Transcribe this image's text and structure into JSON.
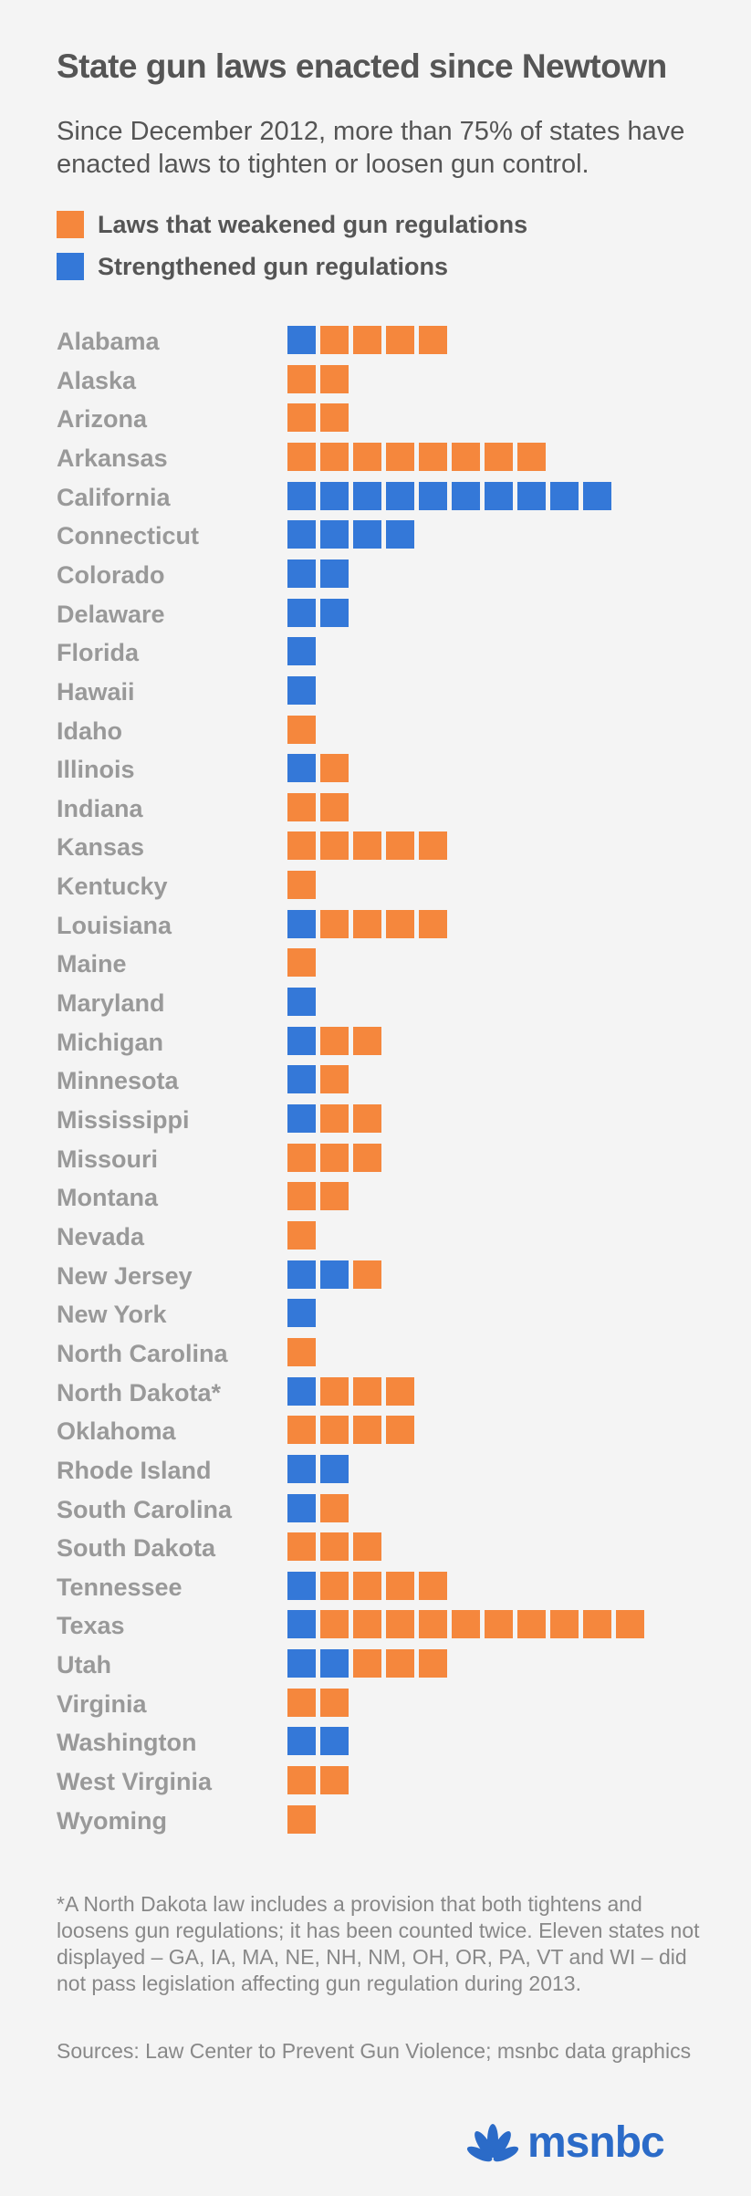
{
  "title": "State gun laws enacted since Newtown",
  "subtitle": "Since December 2012, more than 75% of states have enacted laws to tighten or loosen gun control.",
  "colors": {
    "weakened": "#f5873d",
    "strengthened": "#3478d8"
  },
  "legend": {
    "weakened": "Laws that weakened gun regulations",
    "strengthened": "Strengthened gun regulations"
  },
  "chart_data": {
    "type": "bar",
    "title": "State gun laws enacted since Newtown",
    "categories": [
      "Alabama",
      "Alaska",
      "Arizona",
      "Arkansas",
      "California",
      "Connecticut",
      "Colorado",
      "Delaware",
      "Florida",
      "Hawaii",
      "Idaho",
      "Illinois",
      "Indiana",
      "Kansas",
      "Kentucky",
      "Louisiana",
      "Maine",
      "Maryland",
      "Michigan",
      "Minnesota",
      "Mississippi",
      "Missouri",
      "Montana",
      "Nevada",
      "New Jersey",
      "New York",
      "North Carolina",
      "North Dakota*",
      "Oklahoma",
      "Rhode Island",
      "South Carolina",
      "South Dakota",
      "Tennessee",
      "Texas",
      "Utah",
      "Virginia",
      "Washington",
      "West Virginia",
      "Wyoming"
    ],
    "series": [
      {
        "name": "Strengthened gun regulations",
        "values": [
          1,
          0,
          0,
          0,
          10,
          4,
          2,
          2,
          1,
          1,
          0,
          1,
          0,
          0,
          0,
          1,
          0,
          1,
          1,
          1,
          1,
          0,
          0,
          0,
          2,
          1,
          0,
          1,
          0,
          2,
          1,
          0,
          1,
          1,
          2,
          0,
          2,
          0,
          0
        ]
      },
      {
        "name": "Laws that weakened gun regulations",
        "values": [
          4,
          2,
          2,
          8,
          0,
          0,
          0,
          0,
          0,
          0,
          1,
          1,
          2,
          5,
          1,
          4,
          1,
          0,
          2,
          1,
          2,
          3,
          2,
          1,
          1,
          0,
          1,
          3,
          4,
          0,
          1,
          3,
          4,
          10,
          3,
          2,
          0,
          2,
          1
        ]
      }
    ],
    "stacked": true,
    "orientation": "horizontal",
    "unit_label": "",
    "xlabel": "",
    "ylabel": "",
    "grid": false,
    "legend_position": "top-left"
  },
  "footnote": "*A North Dakota law includes a provision that both tightens and loosens gun regulations; it has been counted twice. Eleven states not displayed – GA, IA, MA, NE, NH, NM, OH, OR, PA, VT and WI – did not pass legislation affecting gun regulation during 2013.",
  "sources": "Sources: Law Center to Prevent Gun Violence; msnbc data graphics",
  "logo": {
    "text": "msnbc",
    "icon": "peacock-icon"
  }
}
